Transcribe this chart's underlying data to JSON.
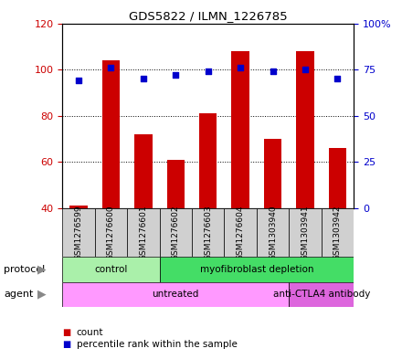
{
  "title": "GDS5822 / ILMN_1226785",
  "samples": [
    "GSM1276599",
    "GSM1276600",
    "GSM1276601",
    "GSM1276602",
    "GSM1276603",
    "GSM1276604",
    "GSM1303940",
    "GSM1303941",
    "GSM1303942"
  ],
  "counts": [
    41,
    104,
    72,
    61,
    81,
    108,
    70,
    108,
    66
  ],
  "percentiles": [
    69,
    76,
    70,
    72,
    74,
    76,
    74,
    75,
    70
  ],
  "bar_color": "#cc0000",
  "dot_color": "#0000cc",
  "ylim_left": [
    40,
    120
  ],
  "ylim_right": [
    0,
    100
  ],
  "yticks_left": [
    40,
    60,
    80,
    100,
    120
  ],
  "yticks_right": [
    0,
    25,
    50,
    75,
    100
  ],
  "ytick_labels_right": [
    "0",
    "25",
    "50",
    "75",
    "100%"
  ],
  "protocol_groups": [
    {
      "label": "control",
      "start": 0,
      "end": 3,
      "color": "#aaf0aa"
    },
    {
      "label": "myofibroblast depletion",
      "start": 3,
      "end": 9,
      "color": "#44dd66"
    }
  ],
  "agent_groups": [
    {
      "label": "untreated",
      "start": 0,
      "end": 7,
      "color": "#ff99ff"
    },
    {
      "label": "anti-CTLA4 antibody",
      "start": 7,
      "end": 9,
      "color": "#dd66dd"
    }
  ],
  "legend_count_label": "count",
  "legend_pct_label": "percentile rank within the sample",
  "left_axis_color": "#cc0000",
  "right_axis_color": "#0000cc",
  "xtick_bg_color": "#d0d0d0",
  "xtick_separator_color": "#888888"
}
